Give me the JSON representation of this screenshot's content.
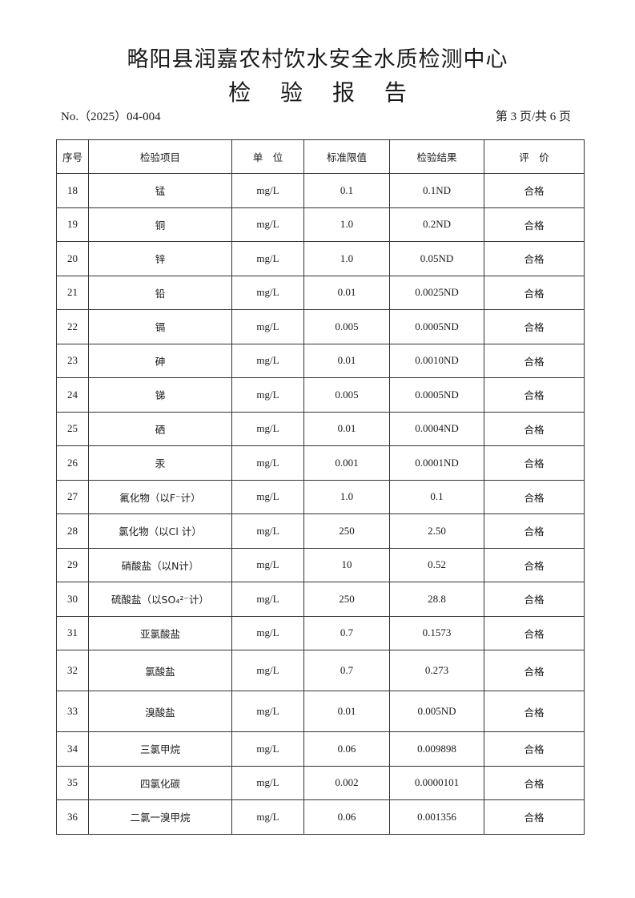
{
  "header": {
    "organization": "略阳县润嘉农村饮水安全水质检测中心",
    "report_title": "检 验 报 告",
    "report_no": "No.（2025）04-004",
    "page_info": "第 3 页/共 6 页"
  },
  "table": {
    "columns": [
      "序号",
      "检验项目",
      "单　位",
      "标准限值",
      "检验结果",
      "评　价"
    ],
    "rows": [
      {
        "no": "18",
        "item": "锰",
        "unit": "mg/L",
        "limit": "0.1",
        "result": "0.1ND",
        "eval": "合格"
      },
      {
        "no": "19",
        "item": "铜",
        "unit": "mg/L",
        "limit": "1.0",
        "result": "0.2ND",
        "eval": "合格"
      },
      {
        "no": "20",
        "item": "锌",
        "unit": "mg/L",
        "limit": "1.0",
        "result": "0.05ND",
        "eval": "合格"
      },
      {
        "no": "21",
        "item": "铅",
        "unit": "mg/L",
        "limit": "0.01",
        "result": "0.0025ND",
        "eval": "合格"
      },
      {
        "no": "22",
        "item": "镉",
        "unit": "mg/L",
        "limit": "0.005",
        "result": "0.0005ND",
        "eval": "合格"
      },
      {
        "no": "23",
        "item": "砷",
        "unit": "mg/L",
        "limit": "0.01",
        "result": "0.0010ND",
        "eval": "合格"
      },
      {
        "no": "24",
        "item": "锑",
        "unit": "mg/L",
        "limit": "0.005",
        "result": "0.0005ND",
        "eval": "合格"
      },
      {
        "no": "25",
        "item": "硒",
        "unit": "mg/L",
        "limit": "0.01",
        "result": "0.0004ND",
        "eval": "合格"
      },
      {
        "no": "26",
        "item": "汞",
        "unit": "mg/L",
        "limit": "0.001",
        "result": "0.0001ND",
        "eval": "合格"
      },
      {
        "no": "27",
        "item": "氟化物（以F⁻计）",
        "unit": "mg/L",
        "limit": "1.0",
        "result": "0.1",
        "eval": "合格"
      },
      {
        "no": "28",
        "item": "氯化物（以Cl 计）",
        "unit": "mg/L",
        "limit": "250",
        "result": "2.50",
        "eval": "合格"
      },
      {
        "no": "29",
        "item": "硝酸盐（以N计）",
        "unit": "mg/L",
        "limit": "10",
        "result": "0.52",
        "eval": "合格"
      },
      {
        "no": "30",
        "item": "硫酸盐（以SO₄²⁻计）",
        "unit": "mg/L",
        "limit": "250",
        "result": "28.8",
        "eval": "合格"
      },
      {
        "no": "31",
        "item": "亚氯酸盐",
        "unit": "mg/L",
        "limit": "0.7",
        "result": "0.1573",
        "eval": "合格"
      },
      {
        "no": "32",
        "item": "氯酸盐",
        "unit": "mg/L",
        "limit": "0.7",
        "result": "0.273",
        "eval": "合格"
      },
      {
        "no": "33",
        "item": "溴酸盐",
        "unit": "mg/L",
        "limit": "0.01",
        "result": "0.005ND",
        "eval": "合格"
      },
      {
        "no": "34",
        "item": "三氯甲烷",
        "unit": "mg/L",
        "limit": "0.06",
        "result": "0.009898",
        "eval": "合格"
      },
      {
        "no": "35",
        "item": "四氯化碳",
        "unit": "mg/L",
        "limit": "0.002",
        "result": "0.0000101",
        "eval": "合格"
      },
      {
        "no": "36",
        "item": "二氯一溴甲烷",
        "unit": "mg/L",
        "limit": "0.06",
        "result": "0.001356",
        "eval": "合格"
      }
    ]
  }
}
